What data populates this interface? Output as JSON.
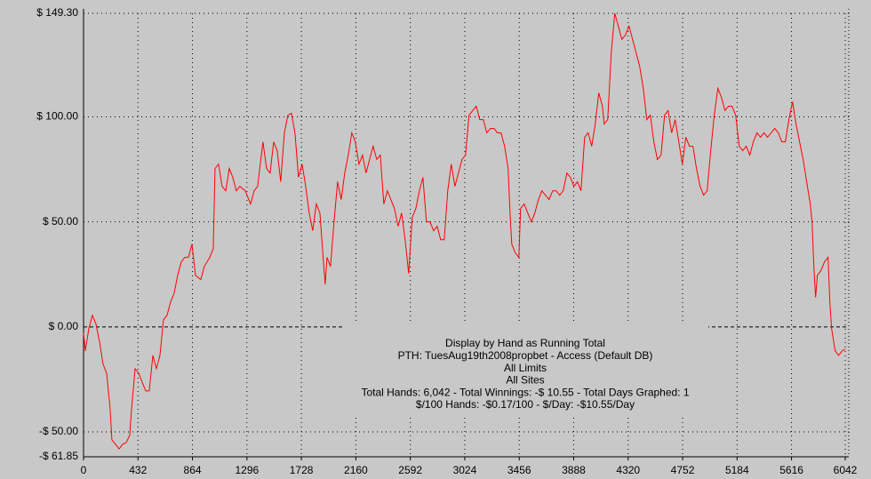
{
  "chart_data": {
    "type": "line",
    "color": "#ff0000",
    "grid": true,
    "annotations": [
      "Display by Hand as Running Total",
      "PTH: TuesAug19th2008propbet - Access (Default DB)",
      "All Limits",
      "All Sites",
      "Total Hands: 6,042 - Total Winnings: -$ 10.55 - Total Days Graphed: 1",
      "$/100 Hands: -$0.17/100 - $/Day: -$10.55/Day"
    ],
    "xlim": [
      0,
      6042
    ],
    "xticks": [
      0,
      432,
      864,
      1296,
      1728,
      2160,
      2592,
      3024,
      3456,
      3888,
      4320,
      4752,
      5184,
      5616,
      6042
    ],
    "ylim": [
      -61.85,
      149.3
    ],
    "yticks": [
      {
        "value": 149.3,
        "label": "$ 149.30"
      },
      {
        "value": 100,
        "label": "$ 100.00"
      },
      {
        "value": 50,
        "label": "$ 50.00"
      },
      {
        "value": 0,
        "label": "$ 0.00"
      },
      {
        "value": -50,
        "label": "-$ 50.00"
      },
      {
        "value": -61.85,
        "label": "-$ 61.85"
      }
    ],
    "x": [
      0,
      14,
      42,
      70,
      99,
      127,
      155,
      183,
      211,
      225,
      254,
      282,
      310,
      338,
      366,
      381,
      409,
      437,
      465,
      493,
      521,
      550,
      578,
      606,
      634,
      662,
      691,
      719,
      747,
      775,
      803,
      832,
      860,
      888,
      930,
      958,
      1001,
      1029,
      1043,
      1071,
      1099,
      1128,
      1156,
      1184,
      1212,
      1240,
      1283,
      1325,
      1353,
      1381,
      1423,
      1452,
      1480,
      1508,
      1536,
      1564,
      1593,
      1621,
      1649,
      1677,
      1705,
      1734,
      1762,
      1790,
      1818,
      1846,
      1875,
      1903,
      1917,
      1931,
      1959,
      1987,
      2015,
      2044,
      2072,
      2100,
      2128,
      2156,
      2185,
      2213,
      2241,
      2269,
      2297,
      2326,
      2354,
      2382,
      2410,
      2438,
      2466,
      2495,
      2523,
      2551,
      2579,
      2607,
      2636,
      2664,
      2692,
      2720,
      2748,
      2777,
      2805,
      2833,
      2861,
      2889,
      2917,
      2946,
      2974,
      3002,
      3030,
      3058,
      3087,
      3115,
      3143,
      3171,
      3199,
      3228,
      3256,
      3284,
      3312,
      3340,
      3368,
      3383,
      3397,
      3425,
      3453,
      3467,
      3495,
      3524,
      3552,
      3580,
      3608,
      3636,
      3664,
      3693,
      3721,
      3749,
      3777,
      3805,
      3834,
      3862,
      3890,
      3918,
      3946,
      3975,
      4003,
      4031,
      4059,
      4087,
      4116,
      4130,
      4158,
      4186,
      4214,
      4242,
      4270,
      4299,
      4327,
      4355,
      4383,
      4411,
      4440,
      4468,
      4496,
      4524,
      4552,
      4581,
      4609,
      4637,
      4665,
      4693,
      4722,
      4750,
      4778,
      4806,
      4834,
      4862,
      4891,
      4919,
      4947,
      4975,
      5003,
      5032,
      5060,
      5088,
      5116,
      5144,
      5173,
      5201,
      5229,
      5257,
      5285,
      5313,
      5342,
      5370,
      5398,
      5426,
      5454,
      5483,
      5511,
      5539,
      5567,
      5595,
      5624,
      5652,
      5680,
      5708,
      5736,
      5765,
      5779,
      5793,
      5807,
      5821,
      5849,
      5877,
      5906,
      5920,
      5934,
      5962,
      5990,
      6018,
      6042
    ],
    "values": [
      -3.0,
      -11.4,
      -0.8,
      5.5,
      1.3,
      -7.2,
      -17.8,
      -22.0,
      -39.0,
      -53.8,
      -55.9,
      -58.1,
      -55.9,
      -55.1,
      -51.7,
      -39.0,
      -19.9,
      -22.0,
      -26.3,
      -30.5,
      -30.5,
      -13.6,
      -19.9,
      -13.6,
      3.4,
      5.5,
      11.9,
      16.1,
      24.6,
      30.9,
      33.1,
      33.1,
      39.4,
      24.6,
      22.5,
      28.8,
      33.1,
      37.3,
      75.4,
      77.5,
      66.9,
      64.8,
      75.4,
      71.2,
      64.8,
      66.9,
      64.8,
      58.5,
      64.8,
      66.9,
      88.1,
      75.4,
      73.3,
      88.1,
      83.9,
      69.1,
      92.4,
      100.8,
      101.7,
      92.4,
      71.2,
      77.5,
      66.9,
      54.2,
      45.8,
      58.5,
      54.2,
      30.9,
      20.3,
      33.1,
      28.8,
      50.0,
      69.1,
      60.6,
      73.3,
      81.8,
      92.4,
      88.1,
      77.5,
      81.8,
      73.3,
      79.7,
      86.0,
      79.7,
      81.8,
      58.5,
      64.8,
      60.6,
      56.4,
      47.9,
      54.2,
      41.5,
      25.4,
      52.1,
      56.4,
      64.8,
      71.2,
      50.0,
      50.0,
      45.8,
      47.9,
      41.5,
      41.5,
      64.8,
      77.5,
      66.9,
      73.3,
      79.7,
      81.8,
      100.8,
      103.0,
      105.1,
      98.7,
      98.7,
      92.4,
      94.5,
      94.5,
      92.4,
      92.4,
      86.0,
      75.4,
      54.2,
      39.4,
      35.2,
      33.1,
      56.4,
      58.5,
      54.2,
      50.0,
      54.2,
      60.6,
      64.8,
      62.7,
      60.6,
      64.8,
      64.8,
      62.7,
      64.8,
      73.3,
      71.2,
      66.9,
      69.1,
      64.8,
      90.3,
      92.4,
      86.0,
      96.6,
      111.4,
      105.1,
      96.6,
      98.7,
      130.5,
      149.3,
      143.2,
      136.9,
      139.0,
      143.2,
      136.9,
      130.5,
      124.2,
      113.6,
      98.7,
      100.8,
      88.1,
      79.7,
      81.8,
      100.8,
      103.0,
      92.4,
      98.7,
      88.1,
      77.5,
      90.3,
      86.0,
      86.0,
      75.4,
      66.9,
      62.7,
      64.8,
      83.9,
      100.8,
      113.6,
      109.3,
      103.0,
      105.1,
      105.1,
      100.8,
      86.0,
      83.9,
      86.0,
      81.8,
      88.1,
      92.4,
      90.3,
      92.4,
      90.3,
      92.4,
      94.5,
      92.4,
      88.1,
      88.1,
      98.7,
      107.2,
      96.6,
      88.1,
      79.7,
      69.1,
      58.5,
      50.0,
      28.8,
      14.0,
      24.6,
      26.7,
      30.9,
      33.1,
      11.9,
      -0.8,
      -11.4,
      -13.6,
      -11.4,
      -10.55
    ]
  }
}
